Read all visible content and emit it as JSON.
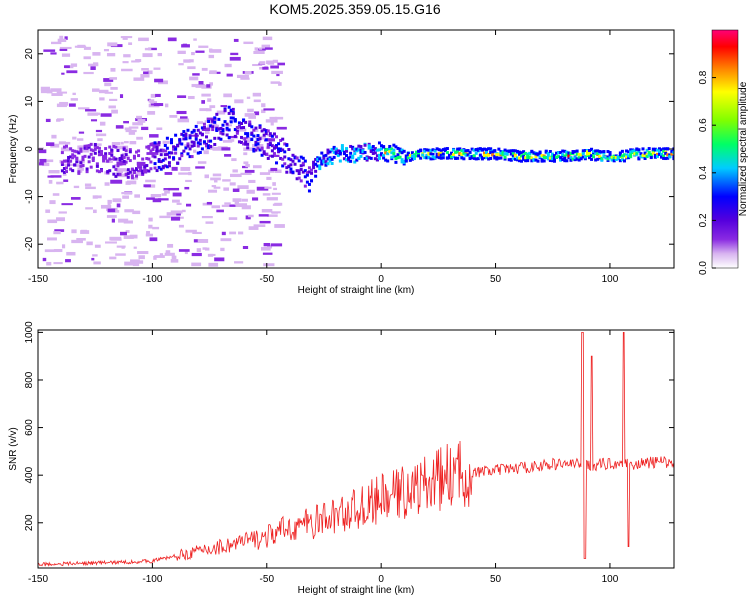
{
  "figure": {
    "title": "KOM5.2025.359.05.15.G16"
  },
  "chart_data": [
    {
      "type": "heatmap",
      "xlabel": "Height of straight line (km)",
      "ylabel": "Frequency (Hz)",
      "xlim": [
        -150,
        128
      ],
      "ylim": [
        -25,
        25
      ],
      "xticks": [
        -150,
        -100,
        -50,
        0,
        50,
        100
      ],
      "yticks": [
        -20,
        -10,
        0,
        10,
        20
      ],
      "colorbar": {
        "label": "Normalized spectral amplitude",
        "range": [
          0,
          1
        ],
        "ticks": [
          "0.0",
          "0.2",
          "0.4",
          "0.6",
          "0.8"
        ],
        "colors": [
          "#ffffff",
          "#d8b4f0",
          "#8a2be2",
          "#5500dd",
          "#0000ff",
          "#00ccff",
          "#00ff66",
          "#80ff00",
          "#ffff00",
          "#ff8000",
          "#ff0000",
          "#ff0077"
        ]
      },
      "ridge": {
        "x": [
          -130,
          -110,
          -100,
          -90,
          -80,
          -70,
          -65,
          -60,
          -50,
          -45,
          -40,
          -35,
          -32,
          -28,
          -20,
          -10,
          -5,
          0,
          10,
          20,
          30,
          40,
          50,
          60,
          70,
          80,
          85,
          90,
          95,
          100,
          105,
          110,
          120,
          128
        ],
        "y": [
          -2,
          -3,
          -2,
          0,
          2,
          5,
          6,
          3,
          1,
          0,
          -3,
          -5,
          -6,
          -3,
          -1,
          -1,
          -0.5,
          -0.5,
          -1.5,
          -1,
          -1,
          -1,
          -1,
          -1.5,
          -1.5,
          -1.5,
          -1.5,
          -1,
          -1.5,
          -1.5,
          -1.5,
          -1,
          -1,
          -1
        ]
      }
    },
    {
      "type": "line",
      "xlabel": "Height of straight line (km)",
      "ylabel": "SNR (v/v)",
      "xlim": [
        -150,
        128
      ],
      "ylim": [
        10,
        1010
      ],
      "xticks": [
        -150,
        -100,
        -50,
        0,
        50,
        100
      ],
      "yticks": [
        200,
        400,
        600,
        800,
        1000
      ],
      "color": "#ee2222",
      "envelope": {
        "x": [
          -150,
          -130,
          -110,
          -100,
          -90,
          -80,
          -70,
          -60,
          -50,
          -40,
          -30,
          -20,
          -10,
          0,
          10,
          20,
          30,
          40,
          50,
          60,
          70,
          80,
          85,
          90,
          95,
          100,
          105,
          110,
          115,
          120,
          128
        ],
        "y": [
          25,
          30,
          35,
          40,
          60,
          80,
          100,
          120,
          140,
          180,
          200,
          230,
          260,
          300,
          330,
          360,
          400,
          410,
          420,
          430,
          440,
          450,
          445,
          440,
          445,
          450,
          450,
          445,
          450,
          455,
          455
        ]
      },
      "spikes": [
        {
          "x": 88,
          "y": 1000
        },
        {
          "x": 89,
          "y": 50
        },
        {
          "x": 92,
          "y": 900
        },
        {
          "x": 106,
          "y": 1000
        },
        {
          "x": 108,
          "y": 100
        }
      ]
    }
  ]
}
